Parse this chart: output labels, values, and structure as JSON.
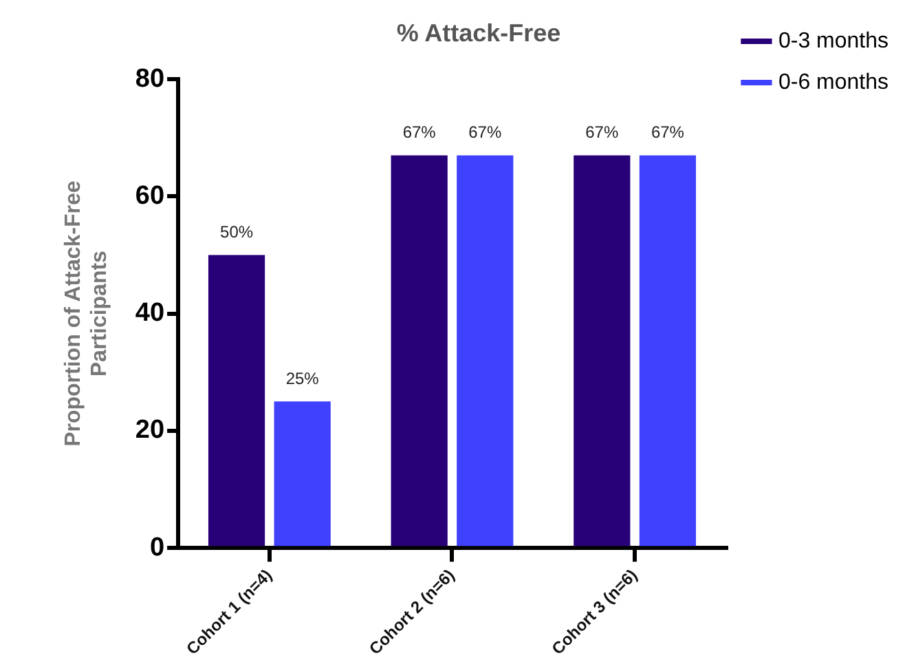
{
  "chart_data": {
    "type": "bar",
    "title": "% Attack-Free",
    "ylabel": "Proportion of Attack-Free\nParticipants",
    "categories": [
      "Cohort 1 (n=4)",
      "Cohort 2 (n=6)",
      "Cohort 3 (n=6)"
    ],
    "series": [
      {
        "name": "0-3 months",
        "color": "#280078",
        "values": [
          50,
          67,
          67
        ],
        "value_labels": [
          "50%",
          "67%",
          "67%"
        ]
      },
      {
        "name": "0-6 months",
        "color": "#4040ff",
        "values": [
          25,
          67,
          67
        ],
        "value_labels": [
          "25%",
          "67%",
          "67%"
        ]
      }
    ],
    "ylim": [
      0,
      80
    ],
    "yticks": [
      0,
      20,
      40,
      60,
      80
    ],
    "legend": "top right"
  }
}
